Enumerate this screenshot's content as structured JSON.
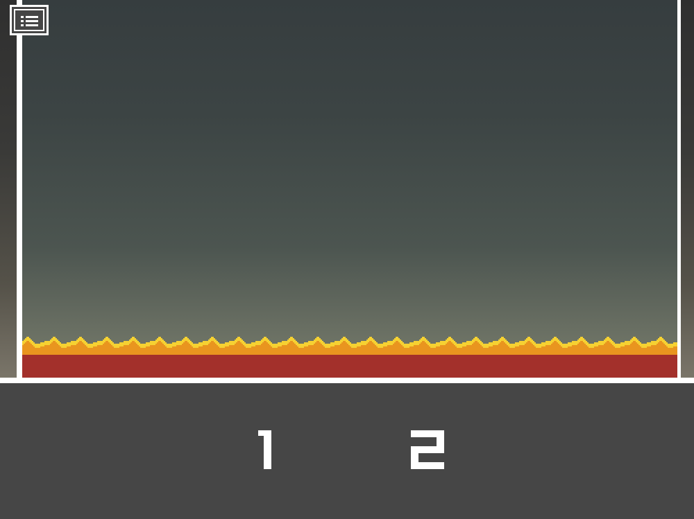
{
  "game": {
    "menu_icon": "list-icon",
    "score_left": "1",
    "score_right": "2"
  },
  "colors": {
    "lava_red": "#a3302b",
    "lava_orange": "#e9951f",
    "lava_yellow": "#f6d132",
    "frame_white": "#ffffff",
    "hud_background": "#464646"
  }
}
